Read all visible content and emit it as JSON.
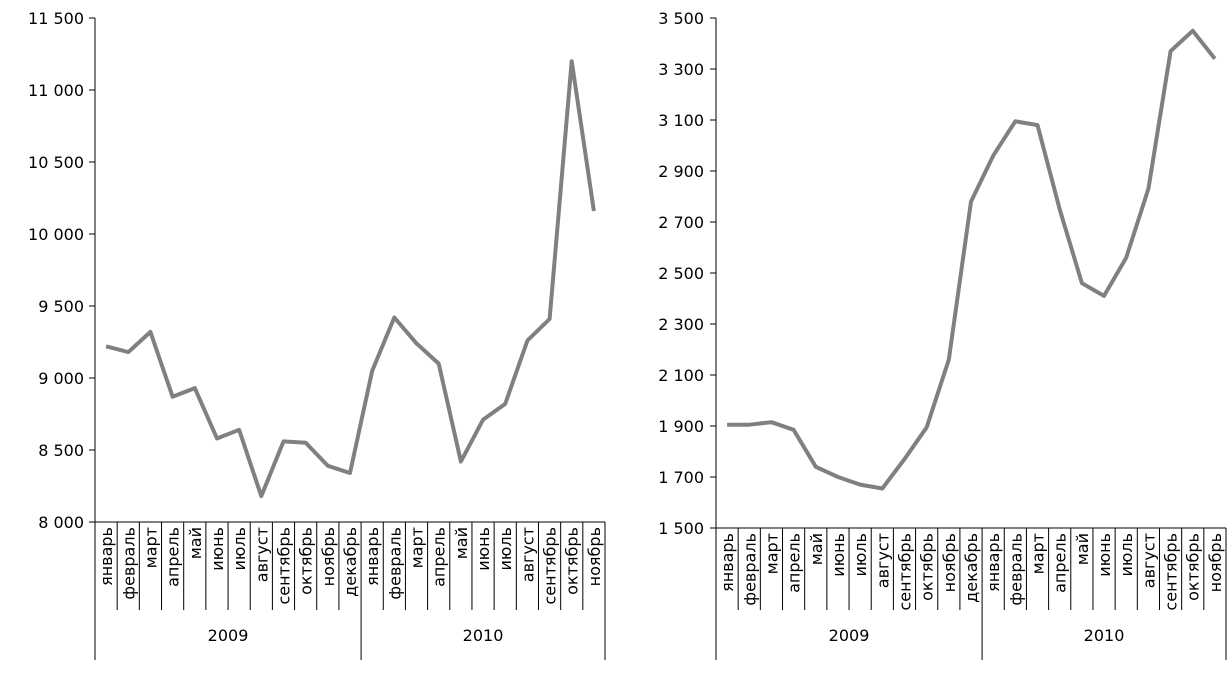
{
  "chart_data": [
    {
      "type": "line",
      "title": "",
      "xlabel": "",
      "ylabel": "",
      "ylim": [
        8000,
        11500
      ],
      "yticks": [
        8000,
        8500,
        9000,
        9500,
        10000,
        10500,
        11000,
        11500
      ],
      "ytick_labels": [
        "8 000",
        "8 500",
        "9 000",
        "9 500",
        "10 000",
        "10 500",
        "11 000",
        "11 500"
      ],
      "grid": false,
      "legend": "none",
      "categories": [
        "январь",
        "февраль",
        "март",
        "апрель",
        "май",
        "июнь",
        "июль",
        "август",
        "сентябрь",
        "октябрь",
        "ноябрь",
        "декабрь",
        "январь",
        "февраль",
        "март",
        "апрель",
        "май",
        "июнь",
        "июль",
        "август",
        "сентябрь",
        "октябрь",
        "ноябрь"
      ],
      "groups": [
        {
          "label": "2009",
          "count": 12
        },
        {
          "label": "2010",
          "count": 11
        }
      ],
      "series": [
        {
          "color": "#808080",
          "values": [
            9220,
            9180,
            9320,
            8870,
            8930,
            8580,
            8640,
            8180,
            8560,
            8550,
            8390,
            8340,
            9050,
            9420,
            9240,
            9100,
            8420,
            8710,
            8820,
            9260,
            9410,
            11200,
            10160
          ]
        }
      ]
    },
    {
      "type": "line",
      "title": "",
      "xlabel": "",
      "ylabel": "",
      "ylim": [
        1500,
        3500
      ],
      "yticks": [
        1500,
        1700,
        1900,
        2100,
        2300,
        2500,
        2700,
        2900,
        3100,
        3300,
        3500
      ],
      "ytick_labels": [
        "1 500",
        "1 700",
        "1 900",
        "2 100",
        "2 300",
        "2 500",
        "2 700",
        "2 900",
        "3 100",
        "3 300",
        "3 500"
      ],
      "grid": false,
      "legend": "none",
      "categories": [
        "январь",
        "февраль",
        "март",
        "апрель",
        "май",
        "июнь",
        "июль",
        "август",
        "сентябрь",
        "октябрь",
        "ноябрь",
        "декабрь",
        "январь",
        "февраль",
        "март",
        "апрель",
        "май",
        "июнь",
        "июль",
        "август",
        "сентябрь",
        "октябрь",
        "ноябрь"
      ],
      "groups": [
        {
          "label": "2009",
          "count": 12
        },
        {
          "label": "2010",
          "count": 11
        }
      ],
      "series": [
        {
          "color": "#808080",
          "values": [
            1905,
            1905,
            1915,
            1885,
            1740,
            1700,
            1670,
            1655,
            1770,
            1895,
            2160,
            2780,
            2960,
            3095,
            3080,
            2750,
            2460,
            2410,
            2560,
            2830,
            3370,
            3450,
            3340
          ]
        }
      ]
    }
  ]
}
